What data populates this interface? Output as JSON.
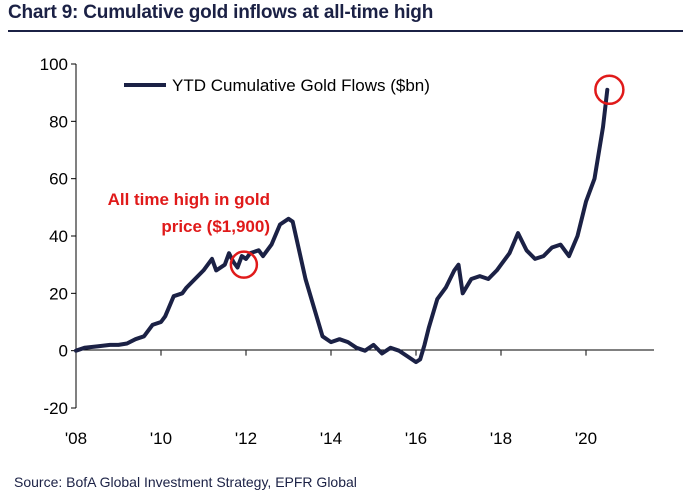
{
  "header": {
    "title": "Chart 9: Cumulative gold inflows at all-time high"
  },
  "footer": {
    "source": "Source: BofA Global Investment Strategy, EPFR Global"
  },
  "colors": {
    "line": "#1b2145",
    "highlight": "#e01a1a",
    "title": "#1b2145"
  },
  "chart_data": {
    "type": "line",
    "title": "Chart 9: Cumulative gold inflows at all-time high",
    "xlabel": "",
    "ylabel": "",
    "xlim": [
      2008,
      2021.6
    ],
    "ylim": [
      -20,
      100
    ],
    "xticks": [
      2008,
      2010,
      2012,
      2014,
      2016,
      2018,
      2020
    ],
    "xtick_labels": [
      "'08",
      "'10",
      "'12",
      "'14",
      "'16",
      "'18",
      "'20"
    ],
    "yticks": [
      -20,
      0,
      20,
      40,
      60,
      80,
      100
    ],
    "ytick_labels": [
      "-20",
      "0",
      "20",
      "40",
      "60",
      "80",
      "100"
    ],
    "grid": false,
    "legend_position": "top-left",
    "series": [
      {
        "name": "YTD Cumulative Gold Flows ($bn)",
        "x": [
          2008.0,
          2008.2,
          2008.5,
          2008.8,
          2009.0,
          2009.2,
          2009.4,
          2009.6,
          2009.8,
          2010.0,
          2010.1,
          2010.3,
          2010.5,
          2010.6,
          2010.8,
          2011.0,
          2011.2,
          2011.3,
          2011.5,
          2011.6,
          2011.7,
          2011.8,
          2011.9,
          2012.0,
          2012.1,
          2012.3,
          2012.4,
          2012.6,
          2012.8,
          2013.0,
          2013.1,
          2013.25,
          2013.4,
          2013.6,
          2013.8,
          2014.0,
          2014.2,
          2014.4,
          2014.6,
          2014.8,
          2015.0,
          2015.2,
          2015.4,
          2015.6,
          2015.8,
          2016.0,
          2016.1,
          2016.2,
          2016.3,
          2016.5,
          2016.7,
          2016.9,
          2017.0,
          2017.1,
          2017.3,
          2017.5,
          2017.7,
          2017.9,
          2018.0,
          2018.2,
          2018.4,
          2018.6,
          2018.8,
          2019.0,
          2019.2,
          2019.4,
          2019.6,
          2019.8,
          2020.0,
          2020.2,
          2020.4,
          2020.5
        ],
        "values": [
          0,
          1,
          1.5,
          2,
          2,
          2.5,
          4,
          5,
          9,
          10,
          12,
          19,
          20,
          22,
          25,
          28,
          32,
          28,
          30,
          34,
          31,
          29,
          33,
          32,
          34,
          35,
          33,
          37,
          44,
          46,
          45,
          35,
          25,
          15,
          5,
          3,
          4,
          3,
          1,
          0,
          2,
          -1,
          1,
          0,
          -2,
          -4,
          -3,
          2,
          8,
          18,
          22,
          28,
          30,
          20,
          25,
          26,
          25,
          28,
          30,
          34,
          41,
          35,
          32,
          33,
          36,
          37,
          33,
          40,
          52,
          60,
          78,
          91
        ]
      }
    ],
    "annotations": [
      {
        "text_lines": [
          "All time high in gold",
          "price ($1,900)"
        ],
        "target_x": 2011.95,
        "target_y": 30
      },
      {
        "text_lines": [],
        "target_x": 2020.55,
        "target_y": 91
      }
    ]
  }
}
